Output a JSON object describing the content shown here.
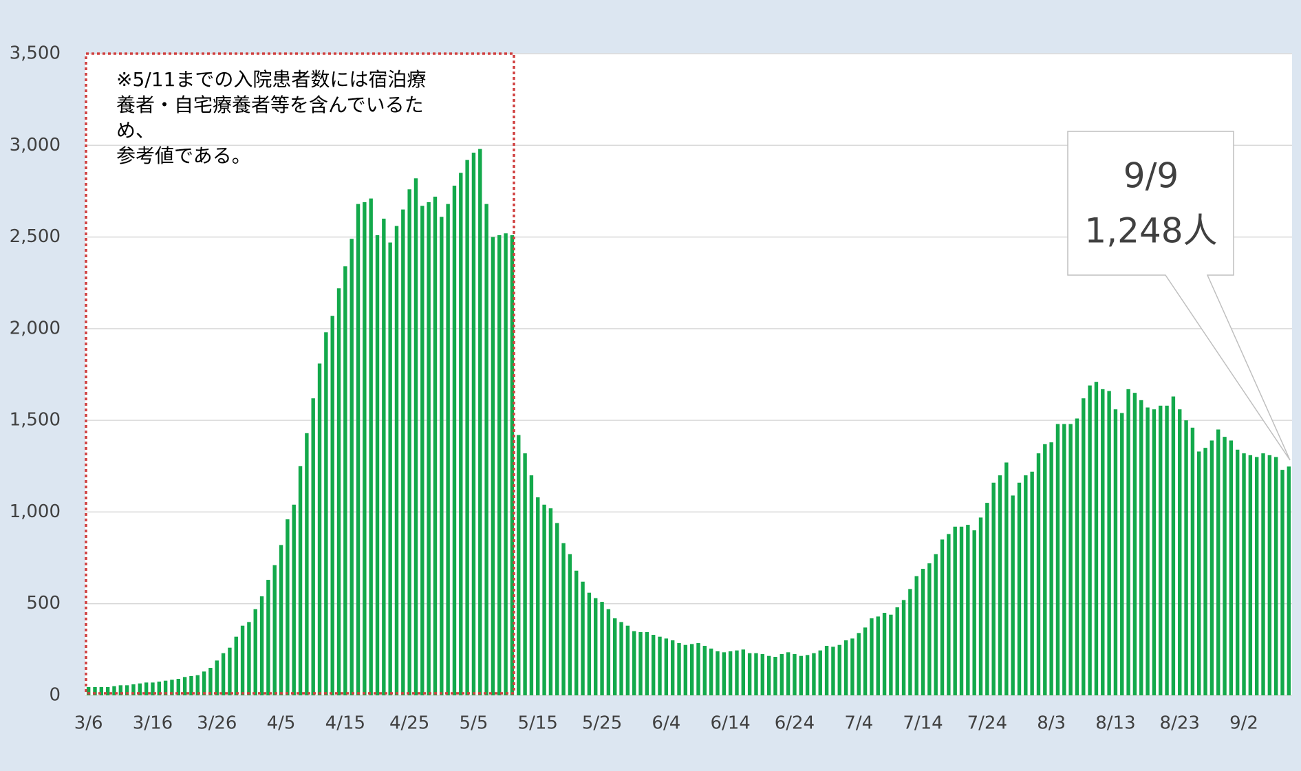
{
  "chart_data": {
    "type": "bar",
    "categories": [
      "3/6",
      null,
      null,
      null,
      null,
      null,
      null,
      null,
      null,
      null,
      "3/16",
      null,
      null,
      null,
      null,
      null,
      null,
      null,
      null,
      null,
      "3/26",
      null,
      null,
      null,
      null,
      null,
      null,
      null,
      null,
      null,
      "4/5",
      null,
      null,
      null,
      null,
      null,
      null,
      null,
      null,
      null,
      "4/15",
      null,
      null,
      null,
      null,
      null,
      null,
      null,
      null,
      null,
      "4/25",
      null,
      null,
      null,
      null,
      null,
      null,
      null,
      null,
      null,
      "5/5",
      null,
      null,
      null,
      null,
      null,
      null,
      null,
      null,
      null,
      "5/15",
      null,
      null,
      null,
      null,
      null,
      null,
      null,
      null,
      null,
      "5/25",
      null,
      null,
      null,
      null,
      null,
      null,
      null,
      null,
      null,
      "6/4",
      null,
      null,
      null,
      null,
      null,
      null,
      null,
      null,
      null,
      "6/14",
      null,
      null,
      null,
      null,
      null,
      null,
      null,
      null,
      null,
      "6/24",
      null,
      null,
      null,
      null,
      null,
      null,
      null,
      null,
      null,
      "7/4",
      null,
      null,
      null,
      null,
      null,
      null,
      null,
      null,
      null,
      "7/14",
      null,
      null,
      null,
      null,
      null,
      null,
      null,
      null,
      null,
      "7/24",
      null,
      null,
      null,
      null,
      null,
      null,
      null,
      null,
      null,
      "8/3",
      null,
      null,
      null,
      null,
      null,
      null,
      null,
      null,
      null,
      "8/13",
      null,
      null,
      null,
      null,
      null,
      null,
      null,
      null,
      null,
      "8/23",
      null,
      null,
      null,
      null,
      null,
      null,
      null,
      null,
      null,
      "9/2",
      null,
      null,
      null,
      null,
      null,
      null,
      null
    ],
    "values": [
      45,
      45,
      45,
      45,
      50,
      55,
      55,
      60,
      65,
      70,
      70,
      75,
      80,
      85,
      90,
      100,
      105,
      110,
      130,
      150,
      190,
      230,
      260,
      320,
      380,
      400,
      470,
      540,
      630,
      710,
      820,
      960,
      1040,
      1250,
      1430,
      1620,
      1810,
      1980,
      2070,
      2220,
      2340,
      2490,
      2680,
      2690,
      2710,
      2510,
      2600,
      2470,
      2560,
      2650,
      2760,
      2820,
      2670,
      2690,
      2720,
      2610,
      2680,
      2780,
      2850,
      2920,
      2960,
      2980,
      2680,
      2500,
      2510,
      2520,
      2510,
      1420,
      1320,
      1200,
      1080,
      1040,
      1020,
      940,
      830,
      770,
      680,
      620,
      560,
      530,
      510,
      470,
      420,
      400,
      380,
      350,
      345,
      345,
      330,
      320,
      310,
      300,
      285,
      275,
      280,
      285,
      270,
      255,
      240,
      235,
      240,
      245,
      250,
      230,
      230,
      225,
      215,
      210,
      225,
      235,
      225,
      215,
      220,
      230,
      245,
      270,
      265,
      275,
      300,
      310,
      340,
      370,
      420,
      430,
      450,
      440,
      480,
      520,
      580,
      650,
      690,
      720,
      770,
      850,
      880,
      920,
      920,
      930,
      900,
      970,
      1050,
      1160,
      1200,
      1270,
      1090,
      1160,
      1200,
      1220,
      1320,
      1370,
      1380,
      1480,
      1480,
      1480,
      1510,
      1620,
      1690,
      1710,
      1670,
      1660,
      1560,
      1540,
      1670,
      1650,
      1610,
      1570,
      1560,
      1580,
      1580,
      1630,
      1560,
      1500,
      1460,
      1330,
      1350,
      1390,
      1450,
      1410,
      1390,
      1340,
      1320,
      1310,
      1300,
      1320,
      1310,
      1300,
      1230,
      1248
    ],
    "color": "#13a94b",
    "ylim": [
      0,
      3500
    ],
    "yticks": [
      0,
      500,
      {
        "value": 1000,
        "label": "1,000"
      },
      {
        "value": 1500,
        "label": "1,500"
      },
      {
        "value": 2000,
        "label": "2,000"
      },
      {
        "value": 2500,
        "label": "2,500"
      },
      {
        "value": 3000,
        "label": "3,000"
      },
      {
        "value": 3500,
        "label": "3,500"
      }
    ],
    "grid": true,
    "note": [
      "※5/11までの入院患者数には宿泊療",
      "養者・自宅療養者等を含んでいるた",
      "め、",
      "参考値である。"
    ],
    "callout": [
      "9/9",
      "1,248人"
    ]
  }
}
